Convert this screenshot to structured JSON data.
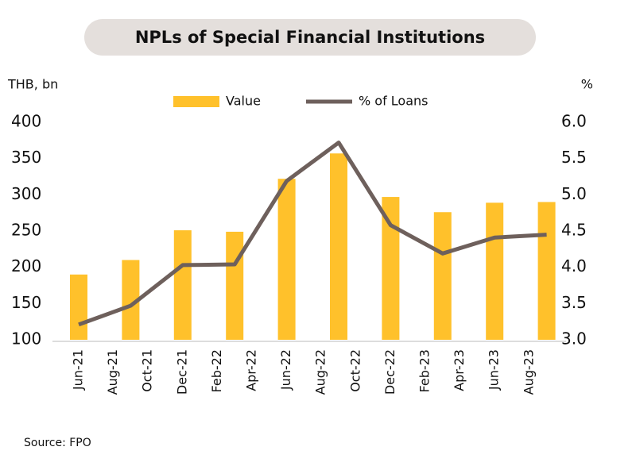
{
  "chart_data": {
    "type": "bar_line",
    "title": "NPLs of Special Financial Institutions",
    "y_label": "THB, bn",
    "y2_label": "%",
    "source": "Source: FPO",
    "x": [
      "2021-06",
      "2021-09",
      "2021-12",
      "2022-03",
      "2022-06",
      "2022-09",
      "2022-12",
      "2023-03",
      "2023-06",
      "2023-09"
    ],
    "xticks": [
      {
        "value": "2021-06",
        "label": "Jun-21"
      },
      {
        "value": "2021-08",
        "label": "Aug-21"
      },
      {
        "value": "2021-10",
        "label": "Oct-21"
      },
      {
        "value": "2021-12",
        "label": "Dec-21"
      },
      {
        "value": "2022-02",
        "label": "Feb-22"
      },
      {
        "value": "2022-04",
        "label": "Apr-22"
      },
      {
        "value": "2022-06",
        "label": "Jun-22"
      },
      {
        "value": "2022-08",
        "label": "Aug-22"
      },
      {
        "value": "2022-10",
        "label": "Oct-22"
      },
      {
        "value": "2022-12",
        "label": "Dec-22"
      },
      {
        "value": "2023-02",
        "label": "Feb-23"
      },
      {
        "value": "2023-04",
        "label": "Apr-23"
      },
      {
        "value": "2023-06",
        "label": "Jun-23"
      },
      {
        "value": "2023-08",
        "label": "Aug-23"
      }
    ],
    "series": [
      {
        "name": "Value",
        "type": "bar",
        "color": "#ffc12b",
        "values": [
          190,
          210,
          251,
          249,
          322,
          357,
          297,
          276,
          289,
          290
        ]
      },
      {
        "name": "% of Loans",
        "type": "line",
        "axis": "y2",
        "color": "#6e605c",
        "values": [
          3.21,
          3.47,
          4.03,
          4.04,
          5.19,
          5.72,
          4.58,
          4.19,
          4.41,
          4.45
        ]
      }
    ],
    "ylim": [
      100,
      400
    ],
    "yticks": [
      100,
      150,
      200,
      250,
      300,
      350,
      400
    ],
    "y2lim": [
      3.0,
      6.0
    ],
    "y2ticks": [
      {
        "value": 3.0,
        "label": "3.0"
      },
      {
        "value": 3.5,
        "label": "3.5"
      },
      {
        "value": 4.0,
        "label": "4.0"
      },
      {
        "value": 4.5,
        "label": "4.5"
      },
      {
        "value": 5.0,
        "label": "5.0"
      },
      {
        "value": 5.5,
        "label": "5.5"
      },
      {
        "value": 6.0,
        "label": "6.0"
      }
    ],
    "legend": "top"
  }
}
